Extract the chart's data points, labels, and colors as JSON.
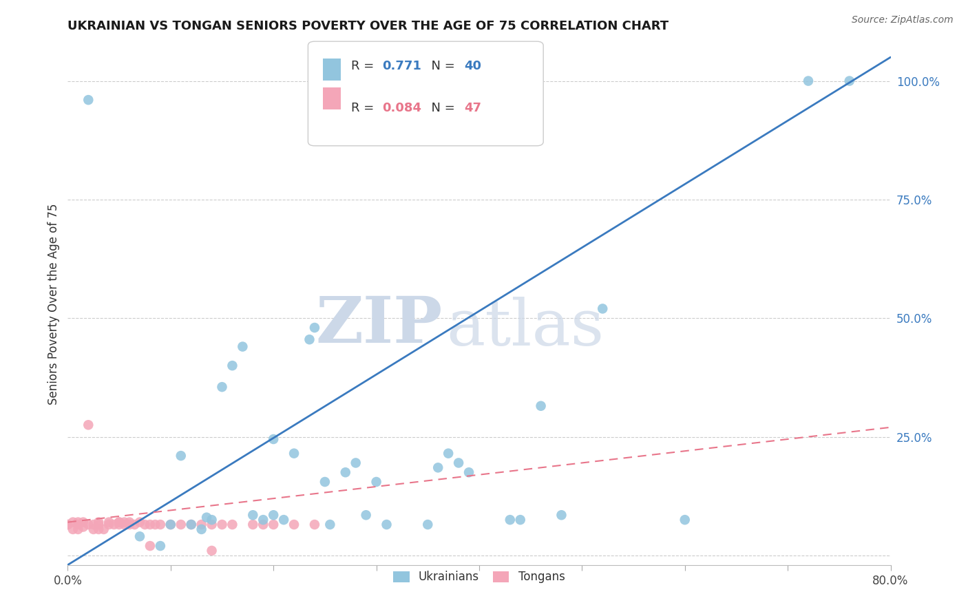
{
  "title": "UKRAINIAN VS TONGAN SENIORS POVERTY OVER THE AGE OF 75 CORRELATION CHART",
  "source": "Source: ZipAtlas.com",
  "ylabel": "Seniors Poverty Over the Age of 75",
  "xlim": [
    0.0,
    0.8
  ],
  "ylim": [
    -0.02,
    1.08
  ],
  "xticks": [
    0.0,
    0.1,
    0.2,
    0.3,
    0.4,
    0.5,
    0.6,
    0.7,
    0.8
  ],
  "xticklabels": [
    "0.0%",
    "",
    "",
    "",
    "",
    "",
    "",
    "",
    "80.0%"
  ],
  "yticks": [
    0.0,
    0.25,
    0.5,
    0.75,
    1.0
  ],
  "yticklabels": [
    "",
    "25.0%",
    "50.0%",
    "75.0%",
    "100.0%"
  ],
  "blue_R": "0.771",
  "blue_N": "40",
  "pink_R": "0.084",
  "pink_N": "47",
  "blue_color": "#92c5de",
  "pink_color": "#f4a6b8",
  "blue_line_color": "#3a7abf",
  "pink_line_color": "#e8758a",
  "watermark_zip": "ZIP",
  "watermark_atlas": "atlas",
  "blue_line_x": [
    0.0,
    0.8
  ],
  "blue_line_y": [
    -0.02,
    1.05
  ],
  "pink_line_x": [
    0.0,
    0.8
  ],
  "pink_line_y": [
    0.07,
    0.27
  ],
  "blue_scatter_x": [
    0.02,
    0.07,
    0.09,
    0.1,
    0.11,
    0.12,
    0.13,
    0.135,
    0.14,
    0.15,
    0.16,
    0.17,
    0.18,
    0.19,
    0.2,
    0.21,
    0.22,
    0.235,
    0.24,
    0.255,
    0.27,
    0.28,
    0.29,
    0.31,
    0.35,
    0.36,
    0.37,
    0.38,
    0.39,
    0.43,
    0.44,
    0.46,
    0.48,
    0.52,
    0.6,
    0.72,
    0.76,
    0.2,
    0.25,
    0.3
  ],
  "blue_scatter_y": [
    0.96,
    0.04,
    0.02,
    0.065,
    0.21,
    0.065,
    0.055,
    0.08,
    0.075,
    0.355,
    0.4,
    0.44,
    0.085,
    0.075,
    0.085,
    0.075,
    0.215,
    0.455,
    0.48,
    0.065,
    0.175,
    0.195,
    0.085,
    0.065,
    0.065,
    0.185,
    0.215,
    0.195,
    0.175,
    0.075,
    0.075,
    0.315,
    0.085,
    0.52,
    0.075,
    1.0,
    1.0,
    0.245,
    0.155,
    0.155
  ],
  "pink_scatter_x": [
    0.0,
    0.0,
    0.005,
    0.005,
    0.01,
    0.01,
    0.01,
    0.015,
    0.015,
    0.02,
    0.02,
    0.025,
    0.025,
    0.03,
    0.03,
    0.03,
    0.035,
    0.04,
    0.04,
    0.045,
    0.05,
    0.05,
    0.055,
    0.055,
    0.06,
    0.06,
    0.065,
    0.07,
    0.075,
    0.08,
    0.085,
    0.09,
    0.1,
    0.11,
    0.12,
    0.13,
    0.14,
    0.15,
    0.16,
    0.18,
    0.19,
    0.2,
    0.22,
    0.24,
    0.05,
    0.08,
    0.14
  ],
  "pink_scatter_y": [
    0.065,
    0.065,
    0.07,
    0.055,
    0.07,
    0.065,
    0.055,
    0.07,
    0.06,
    0.275,
    0.065,
    0.065,
    0.055,
    0.07,
    0.065,
    0.055,
    0.055,
    0.07,
    0.065,
    0.065,
    0.07,
    0.065,
    0.07,
    0.065,
    0.07,
    0.065,
    0.065,
    0.07,
    0.065,
    0.065,
    0.065,
    0.065,
    0.065,
    0.065,
    0.065,
    0.065,
    0.065,
    0.065,
    0.065,
    0.065,
    0.065,
    0.065,
    0.065,
    0.065,
    0.07,
    0.02,
    0.01
  ]
}
